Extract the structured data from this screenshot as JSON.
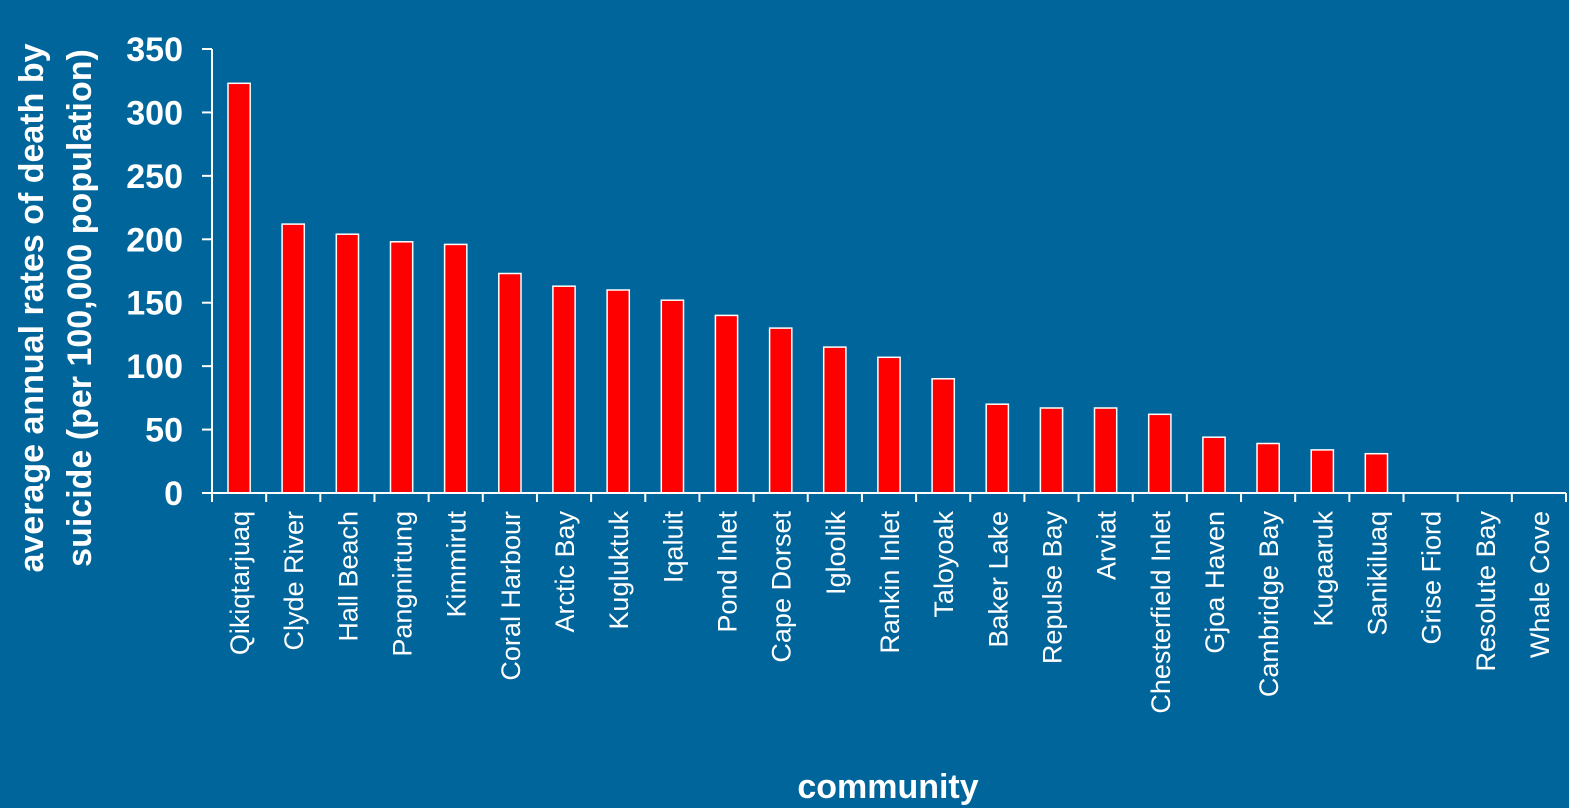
{
  "chart_data": {
    "type": "bar",
    "xlabel": "community",
    "ylabel_lines": [
      "average annual rates of death by",
      "suicide (per 100,000 population)"
    ],
    "categories": [
      "Qikiqtarjuaq",
      "Clyde River",
      "Hall Beach",
      "Pangnirtung",
      "Kimmirut",
      "Coral Harbour",
      "Arctic Bay",
      "Kugluktuk",
      "Iqaluit",
      "Pond Inlet",
      "Cape Dorset",
      "Igloolik",
      "Rankin Inlet",
      "Taloyoak",
      "Baker Lake",
      "Repulse Bay",
      "Arviat",
      "Chesterfield Inlet",
      "Gjoa Haven",
      "Cambridge Bay",
      "Kugaaruk",
      "Sanikiluaq",
      "Grise Fiord",
      "Resolute Bay",
      "Whale Cove"
    ],
    "values": [
      323,
      212,
      204,
      198,
      196,
      173,
      163,
      160,
      152,
      140,
      130,
      115,
      107,
      90,
      70,
      67,
      67,
      62,
      44,
      39,
      34,
      31,
      0,
      0,
      0
    ],
    "ylim": [
      0,
      350
    ],
    "yticks": [
      0,
      50,
      100,
      150,
      200,
      250,
      300,
      350
    ],
    "grid": false,
    "legend": "none",
    "colors": {
      "background": "#00659b",
      "bar": "#ff0000",
      "bar_edge": "#ffffff",
      "axis": "#ffffff",
      "text": "#ffffff"
    }
  }
}
